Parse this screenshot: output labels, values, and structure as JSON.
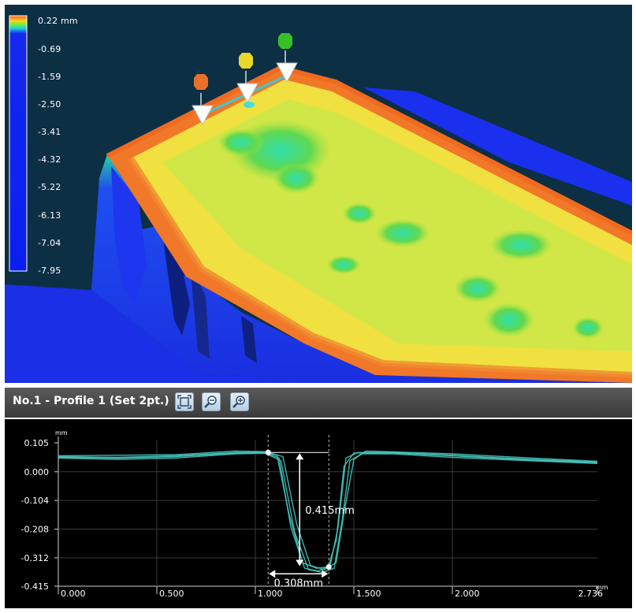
{
  "legend": {
    "unit_label": "0.22 mm",
    "ticks": [
      "-0.69",
      "-1.59",
      "-2.50",
      "-3.41",
      "-4.32",
      "-5.22",
      "-6.13",
      "-7.04",
      "-7.95"
    ]
  },
  "markers": [
    {
      "name": "marker-1",
      "color": "#e8702a"
    },
    {
      "name": "marker-2",
      "color": "#e8d82a"
    },
    {
      "name": "marker-3",
      "color": "#38c028"
    }
  ],
  "panel": {
    "title": "No.1 - Profile 1 (Set 2pt.)",
    "buttons": [
      {
        "name": "fit-view-button",
        "icon": "fit-frame-icon"
      },
      {
        "name": "zoom-out-button",
        "icon": "zoom-out-icon"
      },
      {
        "name": "zoom-in-button",
        "icon": "zoom-in-icon"
      }
    ]
  },
  "chart_data": {
    "type": "line",
    "x_unit": "mm",
    "y_unit": "mm",
    "xlim": [
      0.0,
      2.736
    ],
    "ylim": [
      -0.415,
      0.105
    ],
    "x_ticks": [
      "0.000",
      "0.500",
      "1.000",
      "1.500",
      "2.000",
      "2.736"
    ],
    "y_ticks": [
      "0.105",
      "0.000",
      "-0.104",
      "-0.208",
      "-0.312",
      "-0.415"
    ],
    "grid": true,
    "series": [
      {
        "x": [
          0.0,
          0.3,
          0.6,
          0.9,
          1.05,
          1.12,
          1.18,
          1.25,
          1.32,
          1.38,
          1.42,
          1.46,
          1.52,
          1.7,
          2.0,
          2.4,
          2.736
        ],
        "y": [
          0.055,
          0.052,
          0.058,
          0.07,
          0.07,
          0.05,
          -0.2,
          -0.35,
          -0.36,
          -0.34,
          -0.2,
          0.05,
          0.07,
          0.07,
          0.06,
          0.045,
          0.035
        ]
      },
      {
        "x": [
          0.0,
          0.3,
          0.6,
          0.9,
          1.05,
          1.13,
          1.2,
          1.27,
          1.34,
          1.4,
          1.44,
          1.48,
          1.54,
          1.7,
          2.0,
          2.4,
          2.736
        ],
        "y": [
          0.05,
          0.045,
          0.05,
          0.065,
          0.067,
          0.04,
          -0.22,
          -0.355,
          -0.365,
          -0.35,
          -0.18,
          0.04,
          0.065,
          0.065,
          0.052,
          0.04,
          0.03
        ]
      },
      {
        "x": [
          0.0,
          0.3,
          0.6,
          0.9,
          1.05,
          1.14,
          1.21,
          1.28,
          1.35,
          1.41,
          1.45,
          1.5,
          1.56,
          1.7,
          2.0,
          2.4,
          2.736
        ],
        "y": [
          0.058,
          0.06,
          0.062,
          0.075,
          0.073,
          0.055,
          -0.19,
          -0.34,
          -0.355,
          -0.33,
          -0.15,
          0.045,
          0.075,
          0.072,
          0.065,
          0.05,
          0.038
        ]
      },
      {
        "x": [
          0.0,
          0.3,
          0.6,
          0.9,
          1.05,
          1.11,
          1.17,
          1.24,
          1.31,
          1.37,
          1.41,
          1.45,
          1.5,
          1.7,
          2.0,
          2.4,
          2.736
        ],
        "y": [
          0.052,
          0.05,
          0.055,
          0.068,
          0.071,
          0.06,
          -0.15,
          -0.33,
          -0.35,
          -0.345,
          -0.25,
          0.02,
          0.068,
          0.068,
          0.058,
          0.042,
          0.032
        ]
      }
    ],
    "annotations": {
      "depth_label": "0.415mm",
      "width_label": "0.308mm",
      "point1": {
        "x": 1.065,
        "y": 0.07
      },
      "point2": {
        "x": 1.373,
        "y": -0.345
      }
    }
  }
}
